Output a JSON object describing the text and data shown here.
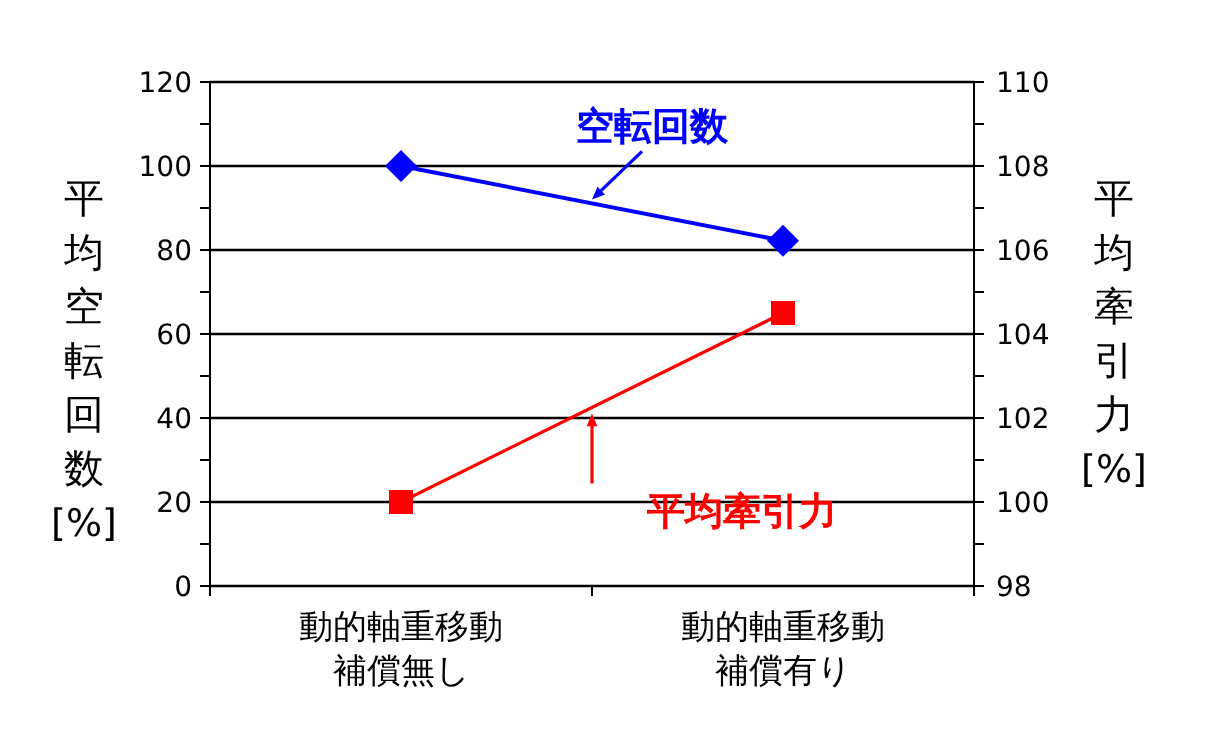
{
  "chart_data": {
    "type": "line",
    "categories": [
      "動的軸重移動補償無し",
      "動的軸重移動補償有り"
    ],
    "ylabel": "平均空転回数 [%]",
    "y2label": "平均牽引力 [%]",
    "ylim": [
      0,
      120
    ],
    "yticks": [
      0,
      {
        "value": 10,
        "label": null
      },
      20,
      {
        "value": 30,
        "label": null
      },
      40,
      {
        "value": 50,
        "label": null
      },
      60,
      {
        "value": 70,
        "label": null
      },
      80,
      {
        "value": 90,
        "label": null
      },
      100,
      {
        "value": 110,
        "label": null
      },
      120
    ],
    "y2lim": [
      98,
      110
    ],
    "y2ticks": [
      98,
      {
        "value": 99,
        "label": null
      },
      100,
      {
        "value": 101,
        "label": null
      },
      102,
      {
        "value": 103,
        "label": null
      },
      104,
      {
        "value": 105,
        "label": null
      },
      106,
      {
        "value": 107,
        "label": null
      },
      108,
      {
        "value": 109,
        "label": null
      },
      110
    ],
    "grid": "y",
    "legend": false,
    "series": [
      {
        "name": "空転回数",
        "color": "#0000ff",
        "values": [
          100,
          82.2
        ],
        "marker": "diamond",
        "axis": "y"
      },
      {
        "name": "平均牽引力",
        "color": "#ff0000",
        "values": [
          100,
          104.5
        ],
        "marker": "square",
        "axis": "y2"
      }
    ]
  }
}
